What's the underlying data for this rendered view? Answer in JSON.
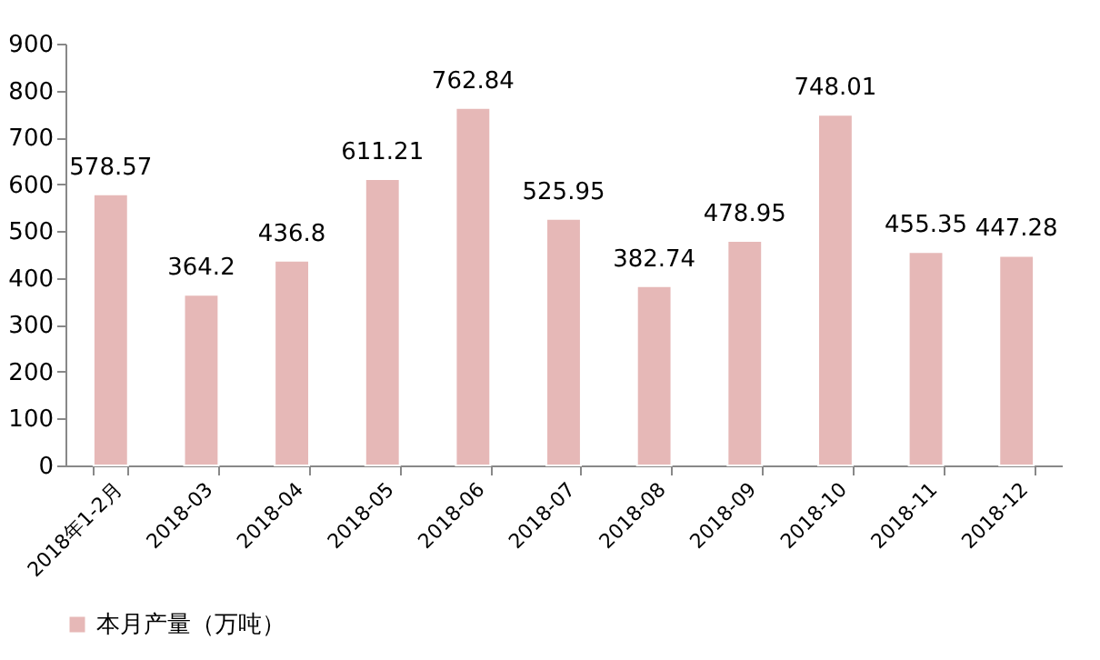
{
  "chart_data": {
    "type": "bar",
    "categories": [
      "2018年1-2月",
      "2018-03",
      "2018-04",
      "2018-05",
      "2018-06",
      "2018-07",
      "2018-08",
      "2018-09",
      "2018-10",
      "2018-11",
      "2018-12"
    ],
    "series": [
      {
        "name": "本月产量（万吨）",
        "color": "#e6b8b7",
        "values": [
          578.57,
          364.2,
          436.8,
          611.21,
          762.84,
          525.95,
          382.74,
          478.95,
          748.01,
          455.35,
          447.28
        ]
      }
    ],
    "ylim": [
      0,
      900
    ],
    "yticks": [
      0,
      100,
      200,
      300,
      400,
      500,
      600,
      700,
      800,
      900
    ],
    "data_labels": true,
    "legend": "bottom",
    "grid": false
  }
}
